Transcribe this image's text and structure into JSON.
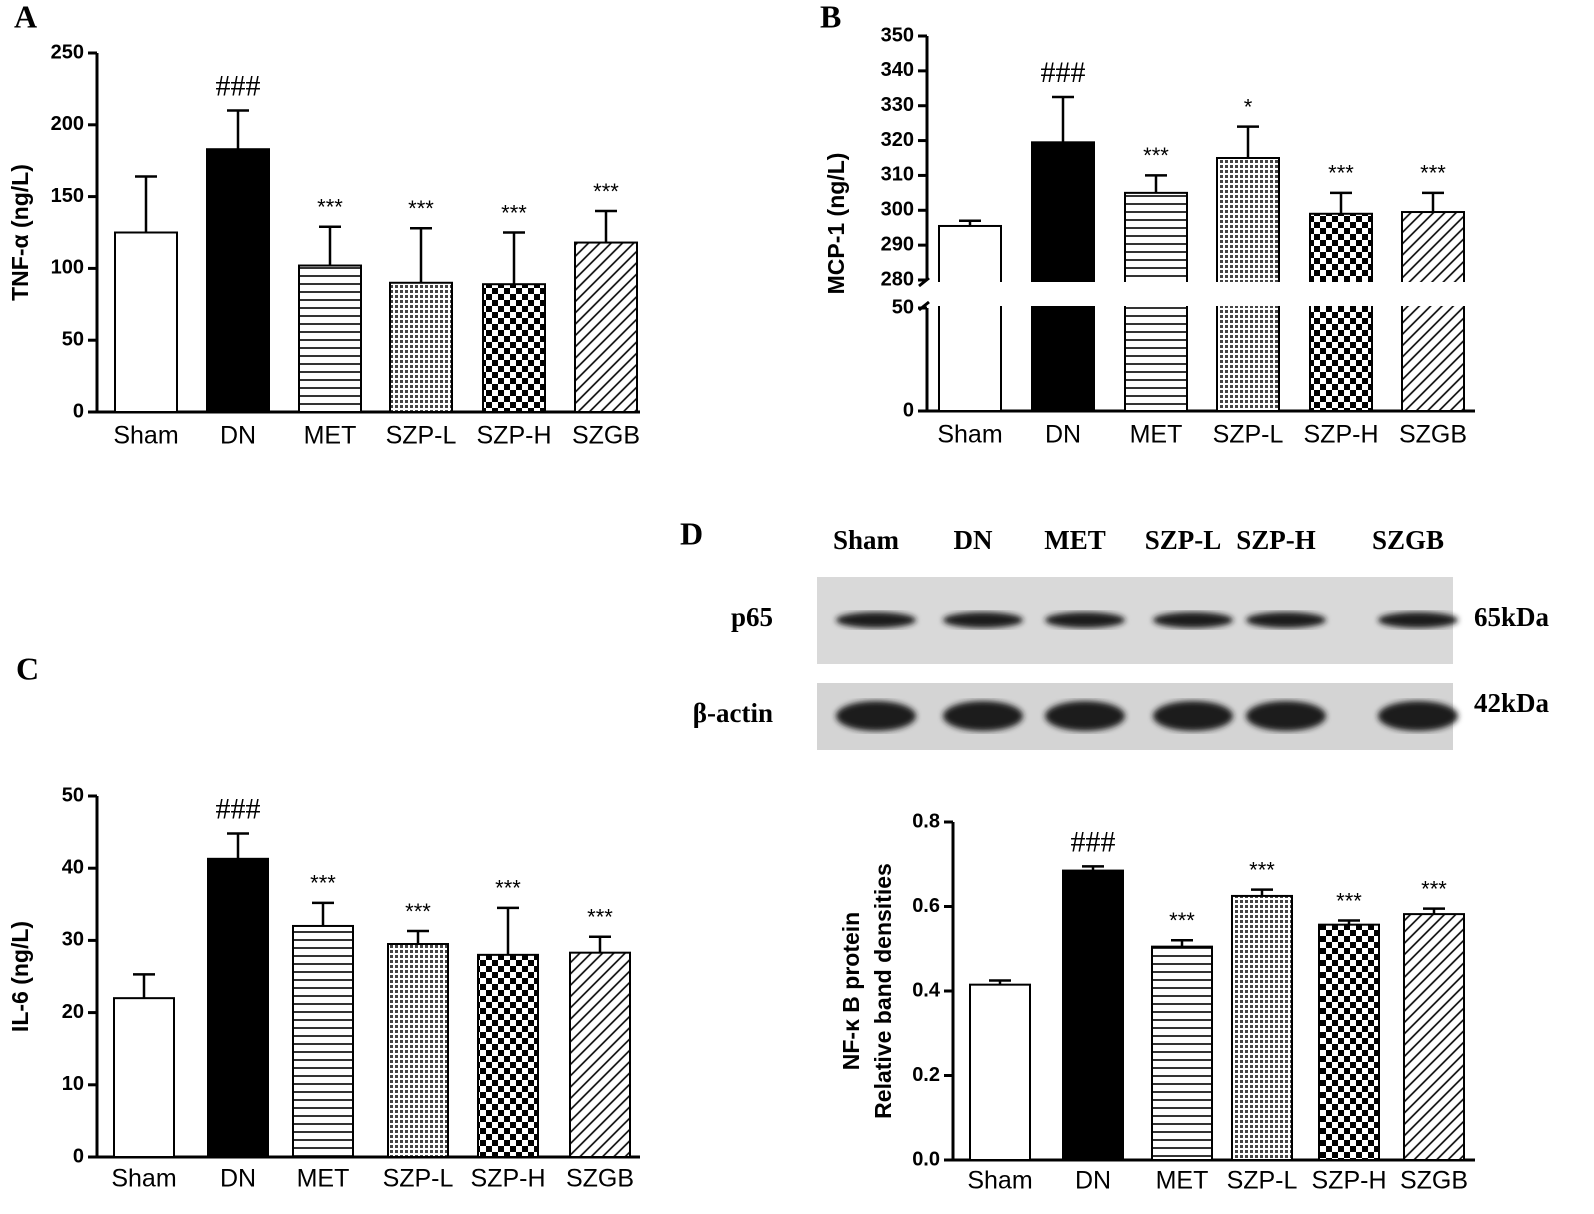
{
  "chart_data": [
    {
      "type": "bar",
      "panel": "A",
      "ylabel": [
        "TNF-α  (ng/L)"
      ],
      "categories": [
        "Sham",
        "DN",
        "MET",
        "SZP-L",
        "SZP-H",
        "SZGB"
      ],
      "values": [
        125,
        183,
        102,
        90,
        89,
        118
      ],
      "errors": [
        39,
        27,
        27,
        38,
        36,
        22
      ],
      "annotations": [
        null,
        "###",
        "***",
        "***",
        "***",
        "***"
      ],
      "fills": [
        "white",
        "black",
        "hlines",
        "dots",
        "checker",
        "diagonal"
      ],
      "ylim": [
        0,
        250
      ],
      "yticks": [
        0,
        50,
        100,
        150,
        200,
        250
      ]
    },
    {
      "type": "bar",
      "panel": "B",
      "ylabel": [
        "MCP-1  (ng/L)"
      ],
      "categories": [
        "Sham",
        "DN",
        "MET",
        "SZP-L",
        "SZP-H",
        "SZGB"
      ],
      "values": [
        295.5,
        319.5,
        305,
        315,
        299,
        299.5
      ],
      "errors": [
        1.5,
        13,
        5,
        9,
        6,
        5.5
      ],
      "annotations": [
        null,
        "###",
        "***",
        "*",
        "***",
        "***"
      ],
      "fills": [
        "white",
        "black",
        "hlines",
        "dots",
        "checker",
        "diagonal"
      ],
      "ylim": [
        0,
        350
      ],
      "ybreak": [
        50,
        280
      ],
      "yticks": [
        0,
        50,
        280,
        290,
        300,
        310,
        320,
        330,
        340,
        350
      ]
    },
    {
      "type": "bar",
      "panel": "C",
      "ylabel": [
        "IL-6 (ng/L)"
      ],
      "categories": [
        "Sham",
        "DN",
        "MET",
        "SZP-L",
        "SZP-H",
        "SZGB"
      ],
      "values": [
        22,
        41.3,
        32,
        29.5,
        28,
        28.3
      ],
      "errors": [
        3.3,
        3.5,
        3.2,
        1.8,
        6.5,
        2.2
      ],
      "annotations": [
        null,
        "###",
        "***",
        "***",
        "***",
        "***"
      ],
      "fills": [
        "white",
        "black",
        "hlines",
        "dots",
        "checker",
        "diagonal"
      ],
      "ylim": [
        0,
        50
      ],
      "yticks": [
        0,
        10,
        20,
        30,
        40,
        50
      ]
    },
    {
      "type": "bar",
      "panel": "D",
      "ylabel": [
        "NF-κ B protein",
        "Relative band densities"
      ],
      "categories": [
        "Sham",
        "DN",
        "MET",
        "SZP-L",
        "SZP-H",
        "SZGB"
      ],
      "values": [
        0.415,
        0.685,
        0.505,
        0.625,
        0.557,
        0.582
      ],
      "errors": [
        0.01,
        0.01,
        0.015,
        0.015,
        0.01,
        0.013
      ],
      "annotations": [
        null,
        "###",
        "***",
        "***",
        "***",
        "***"
      ],
      "fills": [
        "white",
        "black",
        "hlines",
        "dots",
        "checker",
        "diagonal"
      ],
      "ylim": [
        0,
        0.8
      ],
      "yticks": [
        {
          "value": 0,
          "label": "0.0"
        },
        0.2,
        0.4,
        0.6,
        0.8
      ],
      "blot": {
        "rows": [
          {
            "label": "p65",
            "size": "65kDa"
          },
          {
            "label": "β-actin",
            "size": "42kDa"
          }
        ]
      }
    }
  ]
}
